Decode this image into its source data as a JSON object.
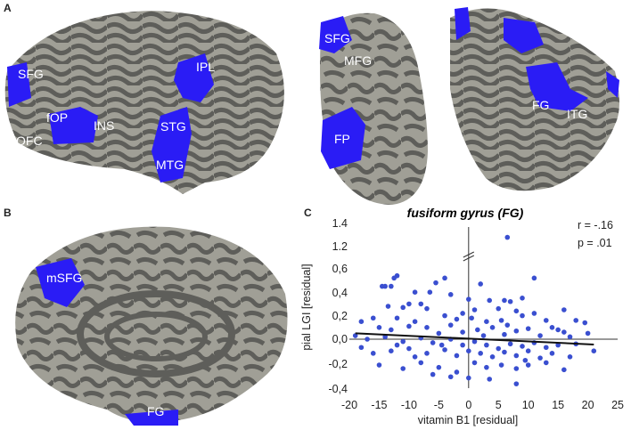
{
  "panels": {
    "a": {
      "letter": "A",
      "labels": {
        "sfg": "SFG",
        "fop": "fOP",
        "ofc": "OFC",
        "ins": "INS",
        "ipl": "IPL",
        "stg": "STG",
        "mtg": "MTG",
        "sfg2": "SFG",
        "mfg": "MFG",
        "fp": "FP",
        "fg": "FG",
        "itg": "ITG"
      }
    },
    "b": {
      "letter": "B",
      "labels": {
        "msfg": "mSFG",
        "fg": "FG"
      }
    },
    "c": {
      "letter": "C"
    }
  },
  "colors": {
    "cortex_dark": "#5e5e5a",
    "cortex_light": "#a09f96",
    "highlight": "#2a1cf5",
    "points": "#3a4fd0"
  },
  "chart_data": {
    "type": "scatter",
    "title": "fusiform gyrus (FG)",
    "xlabel": "vitamin B1 [residual]",
    "ylabel": "pial LGI [residual]",
    "xlim": [
      -20,
      25
    ],
    "xticks": [
      "-20",
      "-15",
      "-10",
      "-5",
      "0",
      "5",
      "10",
      "15",
      "20",
      "25"
    ],
    "yticks": [
      "1.4",
      "1.2",
      "0,6",
      "0,4",
      "0,2",
      "0,0",
      "-0,2",
      "-0,4"
    ],
    "yaxis_break": "between 0,6 and 1.2",
    "grid": false,
    "stats": {
      "r": "r = -.16",
      "p": "p =  .01"
    },
    "trendline": [
      [
        -19,
        0.05
      ],
      [
        21,
        -0.045
      ]
    ],
    "points": [
      [
        6.5,
        1.28
      ],
      [
        -12,
        0.54
      ],
      [
        -12.5,
        0.52
      ],
      [
        -4,
        0.52
      ],
      [
        11,
        0.52
      ],
      [
        -5.5,
        0.48
      ],
      [
        2,
        0.47
      ],
      [
        -14.5,
        0.45
      ],
      [
        -14,
        0.45
      ],
      [
        -13,
        0.45
      ],
      [
        -9,
        0.4
      ],
      [
        -6.5,
        0.4
      ],
      [
        -3,
        0.38
      ],
      [
        9,
        0.35
      ],
      [
        0,
        0.34
      ],
      [
        3.5,
        0.33
      ],
      [
        6,
        0.33
      ],
      [
        7,
        0.32
      ],
      [
        -8,
        0.3
      ],
      [
        -10,
        0.3
      ],
      [
        -13.5,
        0.28
      ],
      [
        -11,
        0.27
      ],
      [
        -7,
        0.26
      ],
      [
        1,
        0.25
      ],
      [
        5,
        0.26
      ],
      [
        8,
        0.24
      ],
      [
        16,
        0.25
      ],
      [
        -16,
        0.18
      ],
      [
        -18,
        0.15
      ],
      [
        -12,
        0.18
      ],
      [
        -9,
        0.15
      ],
      [
        -4,
        0.2
      ],
      [
        -2,
        0.17
      ],
      [
        0.5,
        0.18
      ],
      [
        3,
        0.15
      ],
      [
        5.5,
        0.16
      ],
      [
        9,
        0.2
      ],
      [
        11,
        0.22
      ],
      [
        13,
        0.16
      ],
      [
        18,
        0.16
      ],
      [
        19.5,
        0.14
      ],
      [
        -15,
        0.1
      ],
      [
        -13,
        0.08
      ],
      [
        -10,
        0.11
      ],
      [
        -7,
        0.1
      ],
      [
        -5,
        0.05
      ],
      [
        -3,
        0.12
      ],
      [
        -1,
        0.06
      ],
      [
        1.5,
        0.08
      ],
      [
        4,
        0.1
      ],
      [
        6,
        0.04
      ],
      [
        8,
        0.07
      ],
      [
        10,
        0.09
      ],
      [
        12,
        0.03
      ],
      [
        14,
        0.1
      ],
      [
        16,
        0.06
      ],
      [
        17,
        0.02
      ],
      [
        20,
        0.05
      ],
      [
        -19,
        0.03
      ],
      [
        -17,
        0.0
      ],
      [
        -14,
        0.02
      ],
      [
        -11,
        -0.02
      ],
      [
        -8,
        0.01
      ],
      [
        -6,
        -0.03
      ],
      [
        -3,
        0.0
      ],
      [
        -1,
        -0.05
      ],
      [
        1,
        -0.02
      ],
      [
        3,
        -0.05
      ],
      [
        5,
        -0.08
      ],
      [
        7,
        -0.04
      ],
      [
        9,
        -0.06
      ],
      [
        11,
        -0.03
      ],
      [
        13,
        -0.07
      ],
      [
        15,
        -0.05
      ],
      [
        18,
        -0.04
      ],
      [
        21,
        -0.1
      ],
      [
        -18,
        -0.07
      ],
      [
        -16,
        -0.12
      ],
      [
        -13,
        -0.1
      ],
      [
        -10,
        -0.08
      ],
      [
        -7,
        -0.12
      ],
      [
        -4,
        -0.09
      ],
      [
        -2,
        -0.14
      ],
      [
        0,
        -0.1
      ],
      [
        2,
        -0.12
      ],
      [
        4,
        -0.15
      ],
      [
        6,
        -0.11
      ],
      [
        8,
        -0.14
      ],
      [
        10,
        -0.1
      ],
      [
        12,
        -0.16
      ],
      [
        14,
        -0.12
      ],
      [
        17,
        -0.15
      ],
      [
        -15,
        -0.22
      ],
      [
        -11,
        -0.25
      ],
      [
        -8,
        -0.2
      ],
      [
        -5,
        -0.24
      ],
      [
        -2,
        -0.28
      ],
      [
        1,
        -0.2
      ],
      [
        3,
        -0.24
      ],
      [
        5.5,
        -0.22
      ],
      [
        8,
        -0.25
      ],
      [
        10,
        -0.22
      ],
      [
        13,
        -0.2
      ],
      [
        16,
        -0.26
      ],
      [
        -6,
        -0.3
      ],
      [
        -3,
        -0.32
      ],
      [
        0,
        -0.33
      ],
      [
        3.5,
        -0.34
      ],
      [
        8,
        -0.38
      ],
      [
        -9,
        -0.15
      ],
      [
        -12,
        -0.05
      ],
      [
        -1,
        0.22
      ],
      [
        6.5,
        0.12
      ],
      [
        9.5,
        -0.18
      ],
      [
        15,
        0.08
      ],
      [
        -4.5,
        -0.05
      ],
      [
        2.5,
        0.03
      ]
    ]
  }
}
